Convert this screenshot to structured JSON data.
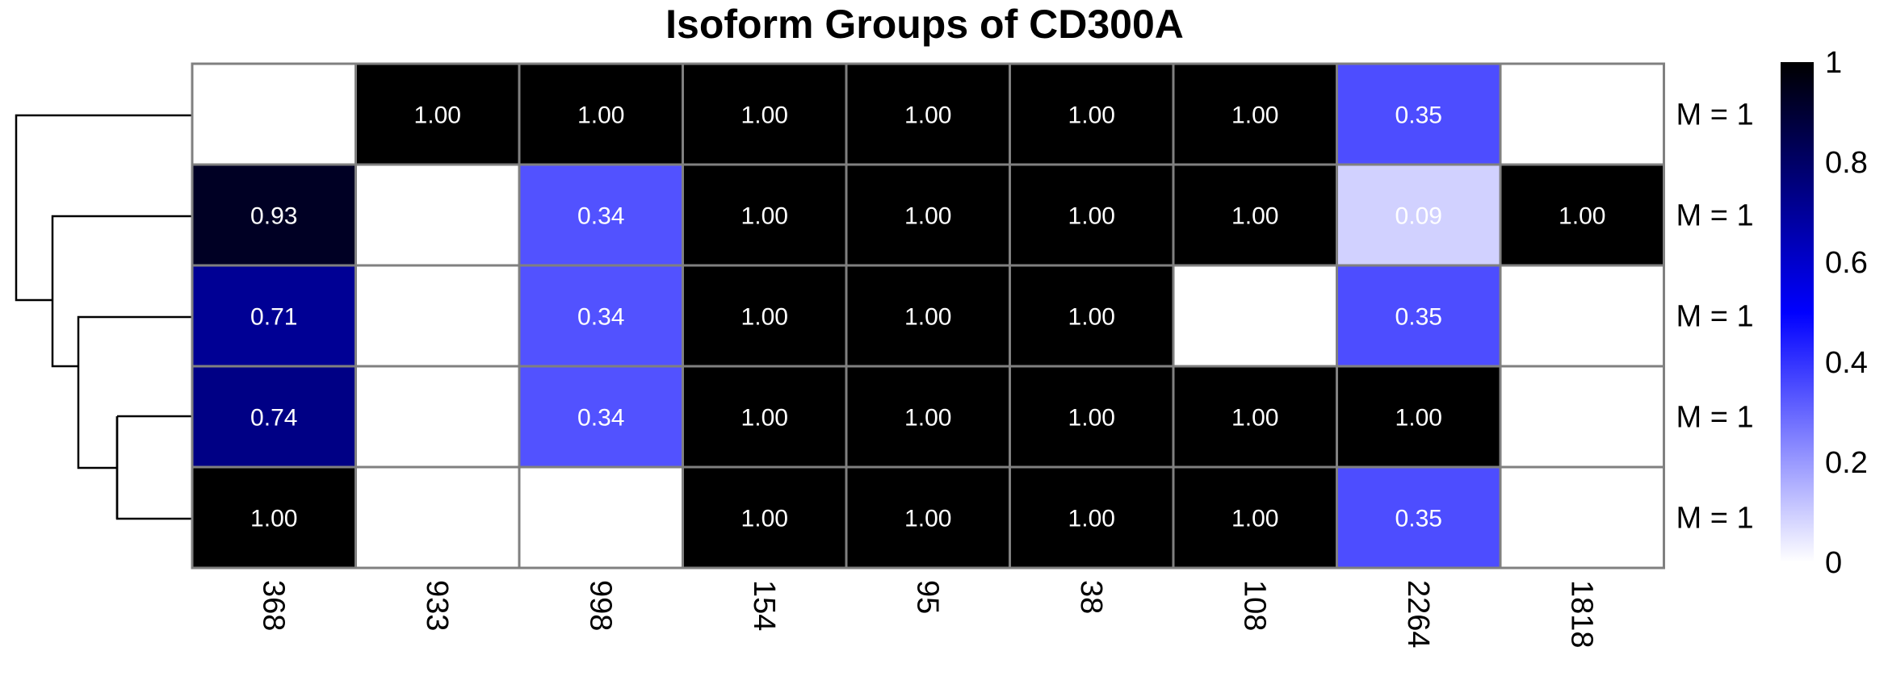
{
  "chart_data": {
    "type": "heatmap",
    "title": "Isoform Groups of CD300A",
    "columns": [
      "368",
      "933",
      "998",
      "154",
      "95",
      "38",
      "108",
      "2264",
      "1818"
    ],
    "rows": [
      "M = 1",
      "M = 1",
      "M = 1",
      "M = 1",
      "M = 1"
    ],
    "values": [
      [
        null,
        1.0,
        1.0,
        1.0,
        1.0,
        1.0,
        1.0,
        0.35,
        null
      ],
      [
        0.93,
        null,
        0.34,
        1.0,
        1.0,
        1.0,
        1.0,
        0.09,
        1.0
      ],
      [
        0.71,
        null,
        0.34,
        1.0,
        1.0,
        1.0,
        null,
        0.35,
        null
      ],
      [
        0.74,
        null,
        0.34,
        1.0,
        1.0,
        1.0,
        1.0,
        1.0,
        null
      ],
      [
        1.0,
        null,
        null,
        1.0,
        1.0,
        1.0,
        1.0,
        0.35,
        null
      ]
    ],
    "value_labels": [
      [
        "",
        "1.00",
        "1.00",
        "1.00",
        "1.00",
        "1.00",
        "1.00",
        "0.35",
        ""
      ],
      [
        "0.93",
        "",
        "0.34",
        "1.00",
        "1.00",
        "1.00",
        "1.00",
        "0.09",
        "1.00"
      ],
      [
        "0.71",
        "",
        "0.34",
        "1.00",
        "1.00",
        "1.00",
        "",
        "0.35",
        ""
      ],
      [
        "0.74",
        "",
        "0.34",
        "1.00",
        "1.00",
        "1.00",
        "1.00",
        "1.00",
        ""
      ],
      [
        "1.00",
        "",
        "",
        "1.00",
        "1.00",
        "1.00",
        "1.00",
        "0.35",
        ""
      ]
    ],
    "color_scale": {
      "range": [
        0,
        1
      ],
      "ticks": [
        "0",
        "0.2",
        "0.4",
        "0.6",
        "0.8",
        "1"
      ],
      "stops": [
        "#ffffff",
        "#0000ff",
        "#000000"
      ],
      "position": "right"
    },
    "dendrogram": "rows",
    "grid_color": "#808080"
  }
}
